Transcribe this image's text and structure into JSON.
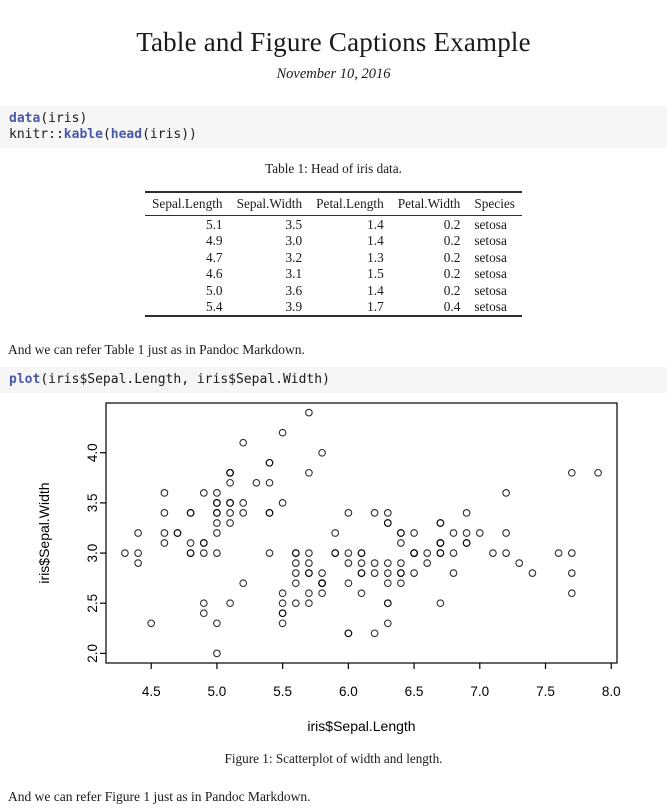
{
  "header": {
    "title": "Table and Figure Captions Example",
    "date": "November 10, 2016"
  },
  "colors": {
    "function_token": "#4758AB",
    "code_background": "#f6f6f6",
    "text": "#1a1a1a",
    "rule": "#2e2e2e",
    "plot_stroke": "#000000"
  },
  "code_blocks": [
    {
      "name": "code-block-data-kable",
      "lines": [
        [
          [
            "data",
            "function"
          ],
          [
            "(iris)",
            "plain"
          ]
        ],
        [
          [
            "knitr::",
            "plain"
          ],
          [
            "kable",
            "function"
          ],
          [
            "(",
            "plain"
          ],
          [
            "head",
            "function"
          ],
          [
            "(iris))",
            "plain"
          ]
        ]
      ]
    },
    {
      "name": "code-block-plot",
      "lines": [
        [
          [
            "plot",
            "function"
          ],
          [
            "(iris$Sepal.Length, iris$Sepal.Width)",
            "plain"
          ]
        ]
      ]
    }
  ],
  "table_section": {
    "caption": "Table 1: Head of iris data.",
    "columns": [
      {
        "label": "Sepal.Length",
        "align": "right"
      },
      {
        "label": "Sepal.Width",
        "align": "right"
      },
      {
        "label": "Petal.Length",
        "align": "right"
      },
      {
        "label": "Petal.Width",
        "align": "right"
      },
      {
        "label": "Species",
        "align": "left"
      }
    ],
    "rows": [
      [
        "5.1",
        "3.5",
        "1.4",
        "0.2",
        "setosa"
      ],
      [
        "4.9",
        "3.0",
        "1.4",
        "0.2",
        "setosa"
      ],
      [
        "4.7",
        "3.2",
        "1.3",
        "0.2",
        "setosa"
      ],
      [
        "4.6",
        "3.1",
        "1.5",
        "0.2",
        "setosa"
      ],
      [
        "5.0",
        "3.6",
        "1.4",
        "0.2",
        "setosa"
      ],
      [
        "5.4",
        "3.9",
        "1.7",
        "0.4",
        "setosa"
      ]
    ]
  },
  "paragraphs": [
    "And we can refer Table 1 just as in Pandoc Markdown.",
    "And we can refer Figure 1 just as in Pandoc Markdown."
  ],
  "figure_section": {
    "caption": "Figure 1: Scatterplot of width and length."
  },
  "chart_data": {
    "type": "scatter",
    "title": "",
    "xlabel": "iris$Sepal.Length",
    "ylabel": "iris$Sepal.Width",
    "xlim": [
      4.156,
      8.044
    ],
    "ylim": [
      1.904,
      4.496
    ],
    "xticks": [
      4.5,
      5.0,
      5.5,
      6.0,
      6.5,
      7.0,
      7.5,
      8.0
    ],
    "yticks": [
      2.0,
      2.5,
      3.0,
      3.5,
      4.0
    ],
    "marker": "open-circle",
    "grid": false,
    "legend": "none",
    "points": [
      [
        5.1,
        3.5
      ],
      [
        4.9,
        3.0
      ],
      [
        4.7,
        3.2
      ],
      [
        4.6,
        3.1
      ],
      [
        5.0,
        3.6
      ],
      [
        5.4,
        3.9
      ],
      [
        4.6,
        3.4
      ],
      [
        5.0,
        3.4
      ],
      [
        4.4,
        2.9
      ],
      [
        4.9,
        3.1
      ],
      [
        5.4,
        3.7
      ],
      [
        4.8,
        3.4
      ],
      [
        4.8,
        3.0
      ],
      [
        4.3,
        3.0
      ],
      [
        5.8,
        4.0
      ],
      [
        5.7,
        4.4
      ],
      [
        5.4,
        3.9
      ],
      [
        5.1,
        3.5
      ],
      [
        5.7,
        3.8
      ],
      [
        5.1,
        3.8
      ],
      [
        5.4,
        3.4
      ],
      [
        5.1,
        3.7
      ],
      [
        4.6,
        3.6
      ],
      [
        5.1,
        3.3
      ],
      [
        4.8,
        3.4
      ],
      [
        5.0,
        3.0
      ],
      [
        5.0,
        3.4
      ],
      [
        5.2,
        3.5
      ],
      [
        5.2,
        3.4
      ],
      [
        4.7,
        3.2
      ],
      [
        4.8,
        3.1
      ],
      [
        5.4,
        3.4
      ],
      [
        5.2,
        4.1
      ],
      [
        5.5,
        4.2
      ],
      [
        4.9,
        3.1
      ],
      [
        5.0,
        3.2
      ],
      [
        5.5,
        3.5
      ],
      [
        4.9,
        3.6
      ],
      [
        4.4,
        3.0
      ],
      [
        5.1,
        3.4
      ],
      [
        5.0,
        3.5
      ],
      [
        4.5,
        2.3
      ],
      [
        4.4,
        3.2
      ],
      [
        5.0,
        3.5
      ],
      [
        5.1,
        3.8
      ],
      [
        4.8,
        3.0
      ],
      [
        5.1,
        3.8
      ],
      [
        4.6,
        3.2
      ],
      [
        5.3,
        3.7
      ],
      [
        5.0,
        3.3
      ],
      [
        7.0,
        3.2
      ],
      [
        6.4,
        3.2
      ],
      [
        6.9,
        3.1
      ],
      [
        5.5,
        2.3
      ],
      [
        6.5,
        2.8
      ],
      [
        5.7,
        2.8
      ],
      [
        6.3,
        3.3
      ],
      [
        4.9,
        2.4
      ],
      [
        6.6,
        2.9
      ],
      [
        5.2,
        2.7
      ],
      [
        5.0,
        2.0
      ],
      [
        5.9,
        3.0
      ],
      [
        6.0,
        2.2
      ],
      [
        6.1,
        2.9
      ],
      [
        5.6,
        2.9
      ],
      [
        6.7,
        3.1
      ],
      [
        5.6,
        3.0
      ],
      [
        5.8,
        2.7
      ],
      [
        6.2,
        2.2
      ],
      [
        5.6,
        2.5
      ],
      [
        5.9,
        3.2
      ],
      [
        6.1,
        2.8
      ],
      [
        6.3,
        2.5
      ],
      [
        6.1,
        2.8
      ],
      [
        6.4,
        2.9
      ],
      [
        6.6,
        3.0
      ],
      [
        6.8,
        2.8
      ],
      [
        6.7,
        3.0
      ],
      [
        6.0,
        2.9
      ],
      [
        5.7,
        2.6
      ],
      [
        5.5,
        2.4
      ],
      [
        5.5,
        2.4
      ],
      [
        5.8,
        2.7
      ],
      [
        6.0,
        2.7
      ],
      [
        5.4,
        3.0
      ],
      [
        6.0,
        3.4
      ],
      [
        6.7,
        3.1
      ],
      [
        6.3,
        2.3
      ],
      [
        5.6,
        3.0
      ],
      [
        5.5,
        2.5
      ],
      [
        5.5,
        2.6
      ],
      [
        6.1,
        3.0
      ],
      [
        5.8,
        2.6
      ],
      [
        5.0,
        2.3
      ],
      [
        5.6,
        2.7
      ],
      [
        5.7,
        3.0
      ],
      [
        5.7,
        2.9
      ],
      [
        6.2,
        2.9
      ],
      [
        5.1,
        2.5
      ],
      [
        5.7,
        2.8
      ],
      [
        6.3,
        3.3
      ],
      [
        5.8,
        2.7
      ],
      [
        7.1,
        3.0
      ],
      [
        6.3,
        2.9
      ],
      [
        6.5,
        3.0
      ],
      [
        7.6,
        3.0
      ],
      [
        4.9,
        2.5
      ],
      [
        7.3,
        2.9
      ],
      [
        6.7,
        2.5
      ],
      [
        7.2,
        3.6
      ],
      [
        6.5,
        3.2
      ],
      [
        6.4,
        2.7
      ],
      [
        6.8,
        3.0
      ],
      [
        5.7,
        2.5
      ],
      [
        5.8,
        2.8
      ],
      [
        6.4,
        3.2
      ],
      [
        6.5,
        3.0
      ],
      [
        7.7,
        3.8
      ],
      [
        7.7,
        2.6
      ],
      [
        6.0,
        2.2
      ],
      [
        6.9,
        3.2
      ],
      [
        5.6,
        2.8
      ],
      [
        7.7,
        2.8
      ],
      [
        6.3,
        2.7
      ],
      [
        6.7,
        3.3
      ],
      [
        7.2,
        3.2
      ],
      [
        6.2,
        2.8
      ],
      [
        6.1,
        3.0
      ],
      [
        6.4,
        2.8
      ],
      [
        7.2,
        3.0
      ],
      [
        7.4,
        2.8
      ],
      [
        7.9,
        3.8
      ],
      [
        6.4,
        2.8
      ],
      [
        6.3,
        2.8
      ],
      [
        6.1,
        2.6
      ],
      [
        7.7,
        3.0
      ],
      [
        6.3,
        3.4
      ],
      [
        6.4,
        3.1
      ],
      [
        6.0,
        3.0
      ],
      [
        6.9,
        3.4
      ],
      [
        6.7,
        3.1
      ],
      [
        6.9,
        3.1
      ],
      [
        5.8,
        2.7
      ],
      [
        6.8,
        3.2
      ],
      [
        6.7,
        3.3
      ],
      [
        6.7,
        3.0
      ],
      [
        6.3,
        2.5
      ],
      [
        6.5,
        3.0
      ],
      [
        6.2,
        3.4
      ],
      [
        5.9,
        3.0
      ]
    ]
  }
}
